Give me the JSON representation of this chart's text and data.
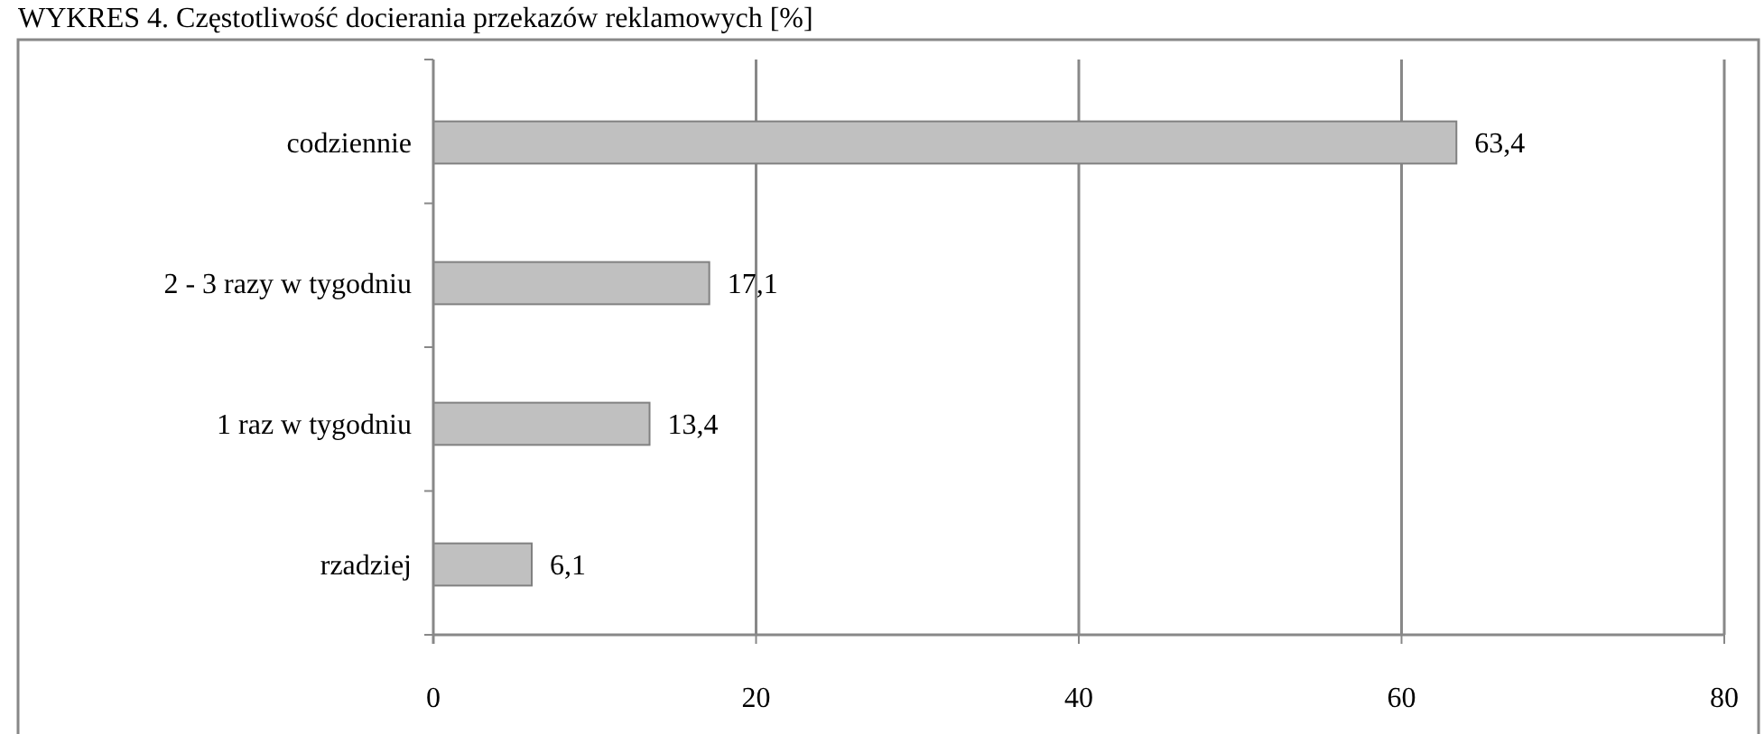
{
  "chart_data": {
    "type": "bar",
    "orientation": "horizontal",
    "title": "WYKRES 4. Częstotliwość docierania przekazów reklamowych [%]",
    "categories": [
      "codziennie",
      "2 - 3 razy w tygodniu",
      "1 raz w tygodniu",
      "rzadziej"
    ],
    "values": [
      63.4,
      17.1,
      13.4,
      6.1
    ],
    "value_labels": [
      "63,4",
      "17,1",
      "13,4",
      "6,1"
    ],
    "color": "#c0c0c0",
    "xlim": [
      0,
      80
    ],
    "xticks": [
      0,
      20,
      40,
      60,
      80
    ],
    "grid": "x"
  }
}
